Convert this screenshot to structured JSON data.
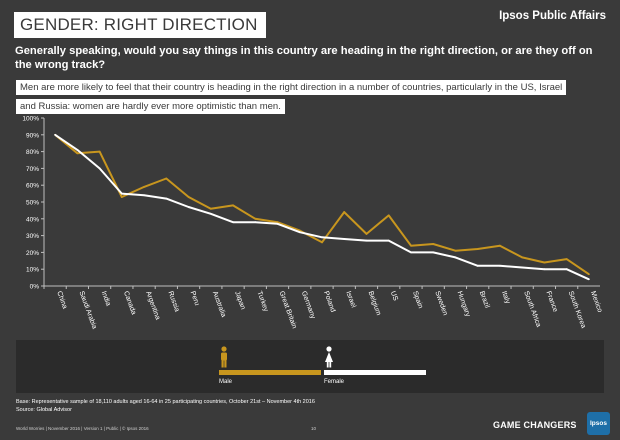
{
  "header": {
    "title": "GENDER: RIGHT DIRECTION",
    "brand": "Ipsos Public Affairs"
  },
  "question": "Generally speaking, would you say things in this country are heading in the right direction, or are they off on the wrong track?",
  "insight": {
    "line1": "Men are more likely to feel that their country is heading in the right direction in a number of countries, particularly in the US, Israel",
    "line2": "and Russia: women are hardly ever more optimistic than men."
  },
  "legend": {
    "male_label": "Male",
    "female_label": "Female"
  },
  "colors": {
    "male": "#c8961e",
    "female": "#ffffff",
    "background": "#3a3a3a",
    "axis": "#bfbfbf"
  },
  "icons": {
    "male": "male-figure-icon",
    "female": "female-figure-icon"
  },
  "footer": {
    "base": "Base: Representative sample of 18,110 adults aged 16-64 in 25 participating countries, October 21st – November 4th 2016",
    "source": "Source: Global Advisor",
    "meta": "World Worries | November 2016 | Version 1 | Public | © Ipsos 2016",
    "page": "10",
    "tagline": "GAME CHANGERS",
    "logo": "Ipsos"
  },
  "chart_data": {
    "type": "line",
    "title": "",
    "xlabel": "",
    "ylabel": "",
    "ylim": [
      0,
      100
    ],
    "yticks": [
      "0%",
      "10%",
      "20%",
      "30%",
      "40%",
      "50%",
      "60%",
      "70%",
      "80%",
      "90%",
      "100%"
    ],
    "categories": [
      "China",
      "Saudi Arabia",
      "India",
      "Canada",
      "Argentina",
      "Russia",
      "Peru",
      "Australia",
      "Japan",
      "Turkey",
      "Great Britain",
      "Germany",
      "Poland",
      "Israel",
      "Belgium",
      "US",
      "Spain",
      "Sweden",
      "Hungary",
      "Brazil",
      "Italy",
      "South Africa",
      "France",
      "South Korea",
      "Mexico"
    ],
    "series": [
      {
        "name": "Male",
        "values": [
          90,
          79,
          80,
          53,
          59,
          64,
          53,
          46,
          48,
          40,
          38,
          33,
          26,
          44,
          31,
          42,
          24,
          25,
          21,
          22,
          24,
          17,
          14,
          16,
          7
        ]
      },
      {
        "name": "Female",
        "values": [
          90,
          81,
          70,
          55,
          54,
          52,
          47,
          43,
          38,
          38,
          37,
          32,
          29,
          28,
          27,
          27,
          20,
          20,
          17,
          12,
          12,
          11,
          10,
          10,
          4
        ]
      }
    ],
    "grid": false,
    "legend_position": "bottom"
  }
}
